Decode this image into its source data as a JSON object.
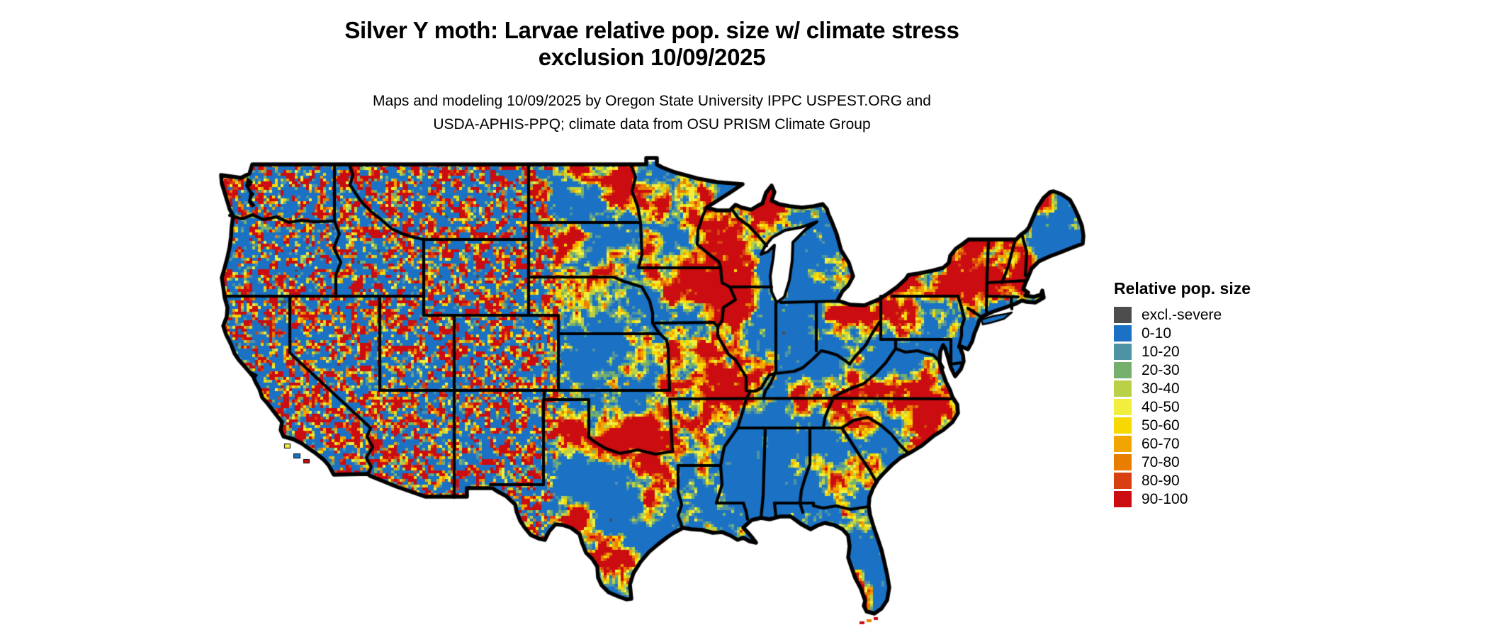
{
  "title": {
    "line1": "Silver Y moth: Larvae relative pop. size w/ climate stress",
    "line2": "exclusion 10/09/2025"
  },
  "subtitle": {
    "line1": "Maps and modeling 10/09/2025 by Oregon State University IPPC USPEST.ORG and",
    "line2": "USDA-APHIS-PPQ; climate data from OSU PRISM Climate Group"
  },
  "legend": {
    "title": "Relative pop. size",
    "items": [
      {
        "label": "excl.-severe",
        "color": "#4d4d4d"
      },
      {
        "label": "0-10",
        "color": "#1b72c4"
      },
      {
        "label": "10-20",
        "color": "#4e93a4"
      },
      {
        "label": "20-30",
        "color": "#74b06c"
      },
      {
        "label": "30-40",
        "color": "#bad147"
      },
      {
        "label": "40-50",
        "color": "#f1ee3d"
      },
      {
        "label": "50-60",
        "color": "#f7d800"
      },
      {
        "label": "60-70",
        "color": "#f0a500"
      },
      {
        "label": "70-80",
        "color": "#e87d00"
      },
      {
        "label": "80-90",
        "color": "#d84012"
      },
      {
        "label": "90-100",
        "color": "#cb0c10"
      }
    ]
  },
  "map": {
    "border_color": "#000000",
    "water_color": "#ffffff"
  }
}
